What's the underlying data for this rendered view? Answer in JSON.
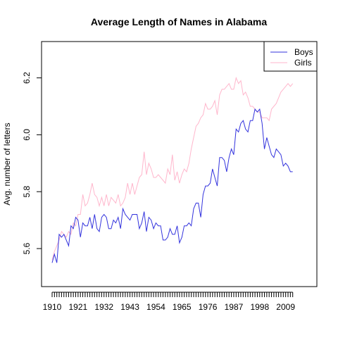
{
  "chart_data": {
    "type": "line",
    "title": "Average Length of Names in Alabama",
    "xlabel": "",
    "ylabel": "Avg. number of letters",
    "xlim": [
      1910,
      2012
    ],
    "ylim": [
      5.56,
      6.3
    ],
    "x_tick_labels": [
      "1910",
      "1921",
      "1932",
      "1943",
      "1954",
      "1965",
      "1976",
      "1987",
      "1998",
      "2009"
    ],
    "x_tick_values": [
      1910,
      1921,
      1932,
      1943,
      1954,
      1965,
      1976,
      1987,
      1998,
      2009
    ],
    "y_tick_values": [
      5.6,
      5.8,
      6.0,
      6.2
    ],
    "y_tick_labels": [
      "5.6",
      "5.8",
      "6.0",
      "6.2"
    ],
    "legend_position": "top-right",
    "grid": false,
    "x": [
      1910,
      1911,
      1912,
      1913,
      1914,
      1915,
      1916,
      1917,
      1918,
      1919,
      1920,
      1921,
      1922,
      1923,
      1924,
      1925,
      1926,
      1927,
      1928,
      1929,
      1930,
      1931,
      1932,
      1933,
      1934,
      1935,
      1936,
      1937,
      1938,
      1939,
      1940,
      1941,
      1942,
      1943,
      1944,
      1945,
      1946,
      1947,
      1948,
      1949,
      1950,
      1951,
      1952,
      1953,
      1954,
      1955,
      1956,
      1957,
      1958,
      1959,
      1960,
      1961,
      1962,
      1963,
      1964,
      1965,
      1966,
      1967,
      1968,
      1969,
      1970,
      1971,
      1972,
      1973,
      1974,
      1975,
      1976,
      1977,
      1978,
      1979,
      1980,
      1981,
      1982,
      1983,
      1984,
      1985,
      1986,
      1987,
      1988,
      1989,
      1990,
      1991,
      1992,
      1993,
      1994,
      1995,
      1996,
      1997,
      1998,
      1999,
      2000,
      2001,
      2002,
      2003,
      2004,
      2005,
      2006,
      2007,
      2008,
      2009,
      2010,
      2011,
      2012
    ],
    "series": [
      {
        "name": "Boys",
        "color": "#3333dd",
        "values": [
          5.55,
          5.58,
          5.55,
          5.65,
          5.64,
          5.65,
          5.63,
          5.61,
          5.68,
          5.67,
          5.71,
          5.7,
          5.64,
          5.69,
          5.68,
          5.68,
          5.71,
          5.67,
          5.72,
          5.67,
          5.66,
          5.71,
          5.72,
          5.71,
          5.67,
          5.67,
          5.7,
          5.69,
          5.71,
          5.67,
          5.74,
          5.72,
          5.71,
          5.7,
          5.72,
          5.72,
          5.72,
          5.67,
          5.69,
          5.73,
          5.66,
          5.71,
          5.7,
          5.67,
          5.69,
          5.68,
          5.68,
          5.63,
          5.63,
          5.64,
          5.67,
          5.65,
          5.65,
          5.68,
          5.62,
          5.64,
          5.68,
          5.68,
          5.69,
          5.68,
          5.74,
          5.76,
          5.76,
          5.71,
          5.79,
          5.82,
          5.82,
          5.83,
          5.88,
          5.85,
          5.82,
          5.92,
          5.92,
          5.91,
          5.87,
          5.92,
          5.95,
          5.93,
          6.02,
          6.01,
          6.04,
          6.05,
          6.02,
          6.01,
          6.05,
          6.05,
          6.09,
          6.08,
          6.09,
          6.04,
          5.95,
          5.99,
          5.96,
          5.93,
          5.92,
          5.95,
          5.94,
          5.93,
          5.89,
          5.9,
          5.89,
          5.87,
          5.87
        ]
      },
      {
        "name": "Girls",
        "color": "#ffb6cc",
        "values": [
          5.56,
          5.59,
          5.61,
          5.63,
          5.66,
          5.65,
          5.64,
          5.66,
          5.65,
          5.69,
          5.68,
          5.72,
          5.72,
          5.79,
          5.75,
          5.76,
          5.79,
          5.83,
          5.79,
          5.78,
          5.75,
          5.78,
          5.75,
          5.79,
          5.75,
          5.78,
          5.77,
          5.76,
          5.79,
          5.75,
          5.76,
          5.78,
          5.83,
          5.79,
          5.83,
          5.79,
          5.82,
          5.85,
          5.86,
          5.94,
          5.86,
          5.9,
          5.88,
          5.85,
          5.85,
          5.86,
          5.85,
          5.84,
          5.83,
          5.88,
          5.86,
          5.93,
          5.84,
          5.87,
          5.83,
          5.86,
          5.88,
          5.87,
          5.9,
          5.95,
          5.99,
          6.03,
          6.04,
          6.06,
          6.07,
          6.11,
          6.09,
          6.09,
          6.1,
          6.12,
          6.07,
          6.14,
          6.16,
          6.16,
          6.17,
          6.18,
          6.16,
          6.16,
          6.2,
          6.18,
          6.19,
          6.14,
          6.15,
          6.13,
          6.1,
          6.1,
          6.09,
          6.08,
          6.08,
          6.06,
          6.06,
          6.06,
          6.05,
          6.09,
          6.1,
          6.11,
          6.13,
          6.15,
          6.16,
          6.17,
          6.18,
          6.17,
          6.18
        ]
      }
    ]
  }
}
